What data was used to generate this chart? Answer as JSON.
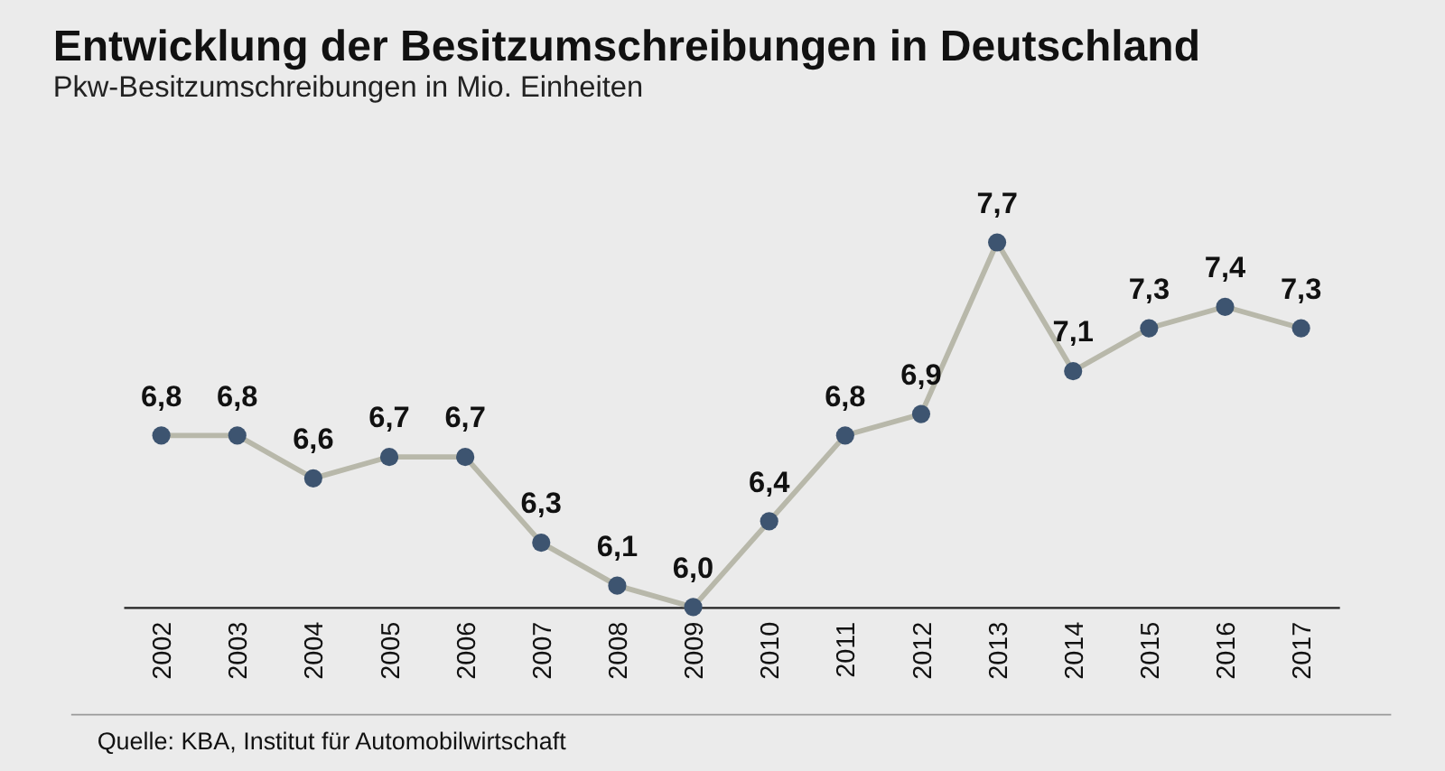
{
  "chart_data": {
    "type": "line",
    "title": "Entwicklung der Besitzumschreibungen in Deutschland",
    "subtitle": "Pkw-Besitzumschreibungen in Mio. Einheiten",
    "categories": [
      "2002",
      "2003",
      "2004",
      "2005",
      "2006",
      "2007",
      "2008",
      "2009",
      "2010",
      "2011",
      "2012",
      "2013",
      "2014",
      "2015",
      "2016",
      "2017"
    ],
    "series": [
      {
        "color": "#b8b8aa",
        "values": [
          6.8,
          6.8,
          6.6,
          6.7,
          6.7,
          6.3,
          6.1,
          6.0,
          6.4,
          6.8,
          6.9,
          7.7,
          7.1,
          7.3,
          7.4,
          7.3
        ],
        "value_labels": [
          "6,8",
          "6,8",
          "6,6",
          "6,7",
          "6,7",
          "6,3",
          "6,1",
          "6,0",
          "6,4",
          "6,8",
          "6,9",
          "7,7",
          "7,1",
          "7,3",
          "7,4",
          "7,3"
        ]
      }
    ],
    "marker": "circle",
    "grid": false,
    "annotations": [
      "Quelle: KBA, Institut für Automobilwirtschaft"
    ]
  }
}
